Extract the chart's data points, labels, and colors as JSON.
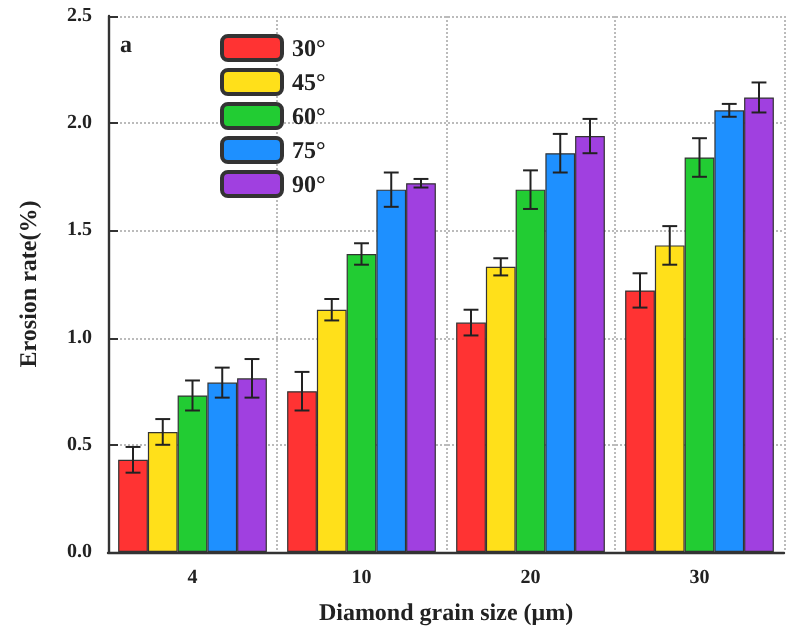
{
  "chart_data": {
    "type": "bar",
    "xlabel": "Diamond grain size (μm)",
    "ylabel": "Erosion rate(%)",
    "categories": [
      "4",
      "10",
      "20",
      "30"
    ],
    "series": [
      {
        "name": "30°",
        "color": "#ff3333",
        "values": [
          0.43,
          0.75,
          1.07,
          1.22
        ],
        "errors": [
          0.06,
          0.09,
          0.06,
          0.08
        ]
      },
      {
        "name": "45°",
        "color": "#ffe01a",
        "values": [
          0.56,
          1.13,
          1.33,
          1.43
        ],
        "errors": [
          0.06,
          0.05,
          0.04,
          0.09
        ]
      },
      {
        "name": "60°",
        "color": "#22cc33",
        "values": [
          0.73,
          1.39,
          1.69,
          1.84
        ],
        "errors": [
          0.07,
          0.05,
          0.09,
          0.09
        ]
      },
      {
        "name": "75°",
        "color": "#1e90ff",
        "values": [
          0.79,
          1.69,
          1.86,
          2.06
        ],
        "errors": [
          0.07,
          0.08,
          0.09,
          0.03
        ]
      },
      {
        "name": "90°",
        "color": "#a040e0",
        "values": [
          0.81,
          1.72,
          1.94,
          2.12
        ],
        "errors": [
          0.09,
          0.02,
          0.08,
          0.07
        ]
      }
    ],
    "ylim": [
      0,
      2.5
    ],
    "yticks": [
      {
        "value": 0,
        "label": "0.0"
      },
      {
        "value": 0.5,
        "label": "0.5"
      },
      {
        "value": 1,
        "label": "1.0"
      },
      {
        "value": 1.5,
        "label": "1.5"
      },
      {
        "value": 2,
        "label": "2.0"
      },
      {
        "value": 2.5,
        "label": "2.5"
      }
    ],
    "annotations": [
      "a"
    ],
    "grid": true,
    "legend": "top left"
  }
}
